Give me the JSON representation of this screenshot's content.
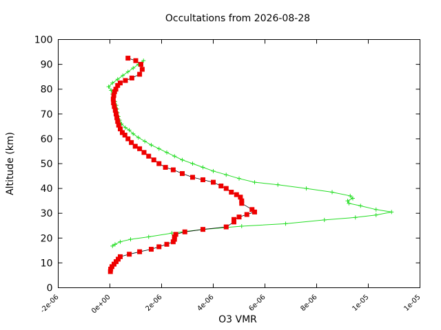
{
  "chart_data": {
    "type": "line",
    "title": "Occultations from 2026-08-28",
    "xlabel": "O3 VMR",
    "ylabel": "Altitude (km)",
    "xlim": [
      -2e-06,
      1.2e-05
    ],
    "ylim": [
      0,
      100
    ],
    "x_ticks": [
      -2e-06,
      0,
      2e-06,
      4e-06,
      6e-06,
      8e-06,
      1e-05,
      1.2e-05
    ],
    "x_tick_labels": [
      "-2e-06",
      "0e+00",
      "2e-06",
      "4e-06",
      "6e-06",
      "8e-06",
      "1e-05",
      "1e-05"
    ],
    "y_ticks": [
      0,
      10,
      20,
      30,
      40,
      50,
      60,
      70,
      80,
      90,
      100
    ],
    "y_tick_labels": [
      "0",
      "10",
      "20",
      "30",
      "40",
      "50",
      "60",
      "70",
      "80",
      "90",
      "100"
    ],
    "grid": false,
    "series": [
      {
        "color": "#22dd22",
        "marker": "plus",
        "points": [
          [
            1.3e-06,
            91.5
          ],
          [
            1.1e-06,
            90.0
          ],
          [
            9e-07,
            88.5
          ],
          [
            7e-07,
            87.0
          ],
          [
            5e-07,
            85.5
          ],
          [
            3e-07,
            84.0
          ],
          [
            1e-07,
            82.5
          ],
          [
            -5e-08,
            81.0
          ],
          [
            5e-08,
            79.5
          ],
          [
            1e-07,
            78.0
          ],
          [
            1.5e-07,
            76.5
          ],
          [
            2e-07,
            75.0
          ],
          [
            2.5e-07,
            73.5
          ],
          [
            2.8e-07,
            72.0
          ],
          [
            3e-07,
            70.5
          ],
          [
            3.3e-07,
            69.0
          ],
          [
            3.8e-07,
            67.5
          ],
          [
            4.5e-07,
            66.0
          ],
          [
            6e-07,
            64.5
          ],
          [
            7.5e-07,
            63.5
          ],
          [
            9e-07,
            62.0
          ],
          [
            1.1e-06,
            60.5
          ],
          [
            1.35e-06,
            59.0
          ],
          [
            1.6e-06,
            57.5
          ],
          [
            1.9e-06,
            56.0
          ],
          [
            2.2e-06,
            54.5
          ],
          [
            2.5e-06,
            53.0
          ],
          [
            2.8e-06,
            51.5
          ],
          [
            3.2e-06,
            50.0
          ],
          [
            3.6e-06,
            48.5
          ],
          [
            4e-06,
            47.0
          ],
          [
            4.5e-06,
            45.5
          ],
          [
            5e-06,
            44.0
          ],
          [
            5.6e-06,
            42.5
          ],
          [
            6.5e-06,
            41.5
          ],
          [
            7.6e-06,
            40.0
          ],
          [
            8.6e-06,
            38.5
          ],
          [
            9.3e-06,
            37.0
          ],
          [
            9.4e-06,
            36.0
          ],
          [
            9.2e-06,
            35.0
          ],
          [
            9.25e-06,
            34.0
          ],
          [
            9.7e-06,
            33.0
          ],
          [
            1.03e-05,
            31.5
          ],
          [
            1.09e-05,
            30.5
          ],
          [
            1.03e-05,
            29.3
          ],
          [
            9.5e-06,
            28.3
          ],
          [
            8.3e-06,
            27.3
          ],
          [
            6.8e-06,
            25.8
          ],
          [
            5.1e-06,
            24.8
          ],
          [
            3.6e-06,
            23.5
          ],
          [
            2.4e-06,
            22.0
          ],
          [
            1.5e-06,
            20.5
          ],
          [
            8e-07,
            19.5
          ],
          [
            4e-07,
            18.5
          ],
          [
            2e-07,
            17.5
          ],
          [
            1e-07,
            16.8
          ]
        ]
      },
      {
        "color": "#ee0000",
        "marker": "square",
        "points": [
          [
            7e-07,
            92.5
          ],
          [
            1e-06,
            91.5
          ],
          [
            1.2e-06,
            90.0
          ],
          [
            1.25e-06,
            88.0
          ],
          [
            1.15e-06,
            86.0
          ],
          [
            8.5e-07,
            84.5
          ],
          [
            6e-07,
            83.5
          ],
          [
            4e-07,
            82.5
          ],
          [
            3e-07,
            81.5
          ],
          [
            2.3e-07,
            80.0
          ],
          [
            1.8e-07,
            79.0
          ],
          [
            1.5e-07,
            77.5
          ],
          [
            1.3e-07,
            76.0
          ],
          [
            1.4e-07,
            74.5
          ],
          [
            1.7e-07,
            73.0
          ],
          [
            2.1e-07,
            71.5
          ],
          [
            2.4e-07,
            70.0
          ],
          [
            2.7e-07,
            68.5
          ],
          [
            3e-07,
            67.0
          ],
          [
            3.4e-07,
            65.5
          ],
          [
            4e-07,
            64.0
          ],
          [
            4.8e-07,
            62.5
          ],
          [
            5.8e-07,
            61.5
          ],
          [
            7e-07,
            60.0
          ],
          [
            8.3e-07,
            58.5
          ],
          [
            9.8e-07,
            57.0
          ],
          [
            1.15e-06,
            56.0
          ],
          [
            1.32e-06,
            54.5
          ],
          [
            1.5e-06,
            53.0
          ],
          [
            1.7e-06,
            51.5
          ],
          [
            1.9e-06,
            50.0
          ],
          [
            2.15e-06,
            48.5
          ],
          [
            2.45e-06,
            47.5
          ],
          [
            2.8e-06,
            46.0
          ],
          [
            3.2e-06,
            44.5
          ],
          [
            3.6e-06,
            43.5
          ],
          [
            4e-06,
            42.5
          ],
          [
            4.3e-06,
            41.0
          ],
          [
            4.5e-06,
            40.0
          ],
          [
            4.7e-06,
            38.5
          ],
          [
            4.9e-06,
            37.5
          ],
          [
            5.05e-06,
            36.5
          ],
          [
            5.1e-06,
            35.0
          ],
          [
            5.1e-06,
            34.0
          ],
          [
            5.5e-06,
            31.5
          ],
          [
            5.6e-06,
            30.5
          ],
          [
            5.3e-06,
            29.5
          ],
          [
            5e-06,
            28.5
          ],
          [
            4.8e-06,
            27.5
          ],
          [
            4.8e-06,
            26.5
          ],
          [
            4.5e-06,
            24.5
          ],
          [
            3.6e-06,
            23.5
          ],
          [
            2.9e-06,
            22.5
          ],
          [
            2.55e-06,
            21.5
          ],
          [
            2.5e-06,
            20.5
          ],
          [
            2.5e-06,
            19.5
          ],
          [
            2.45e-06,
            18.5
          ],
          [
            2.2e-06,
            17.5
          ],
          [
            1.9e-06,
            16.5
          ],
          [
            1.6e-06,
            15.5
          ],
          [
            1.15e-06,
            14.5
          ],
          [
            7.5e-07,
            13.5
          ],
          [
            4e-07,
            12.5
          ],
          [
            3.2e-07,
            11.5
          ],
          [
            2.4e-07,
            10.5
          ],
          [
            1.6e-07,
            9.5
          ],
          [
            8e-08,
            8.5
          ],
          [
            3e-08,
            7.5
          ],
          [
            2e-08,
            6.5
          ]
        ]
      }
    ]
  }
}
